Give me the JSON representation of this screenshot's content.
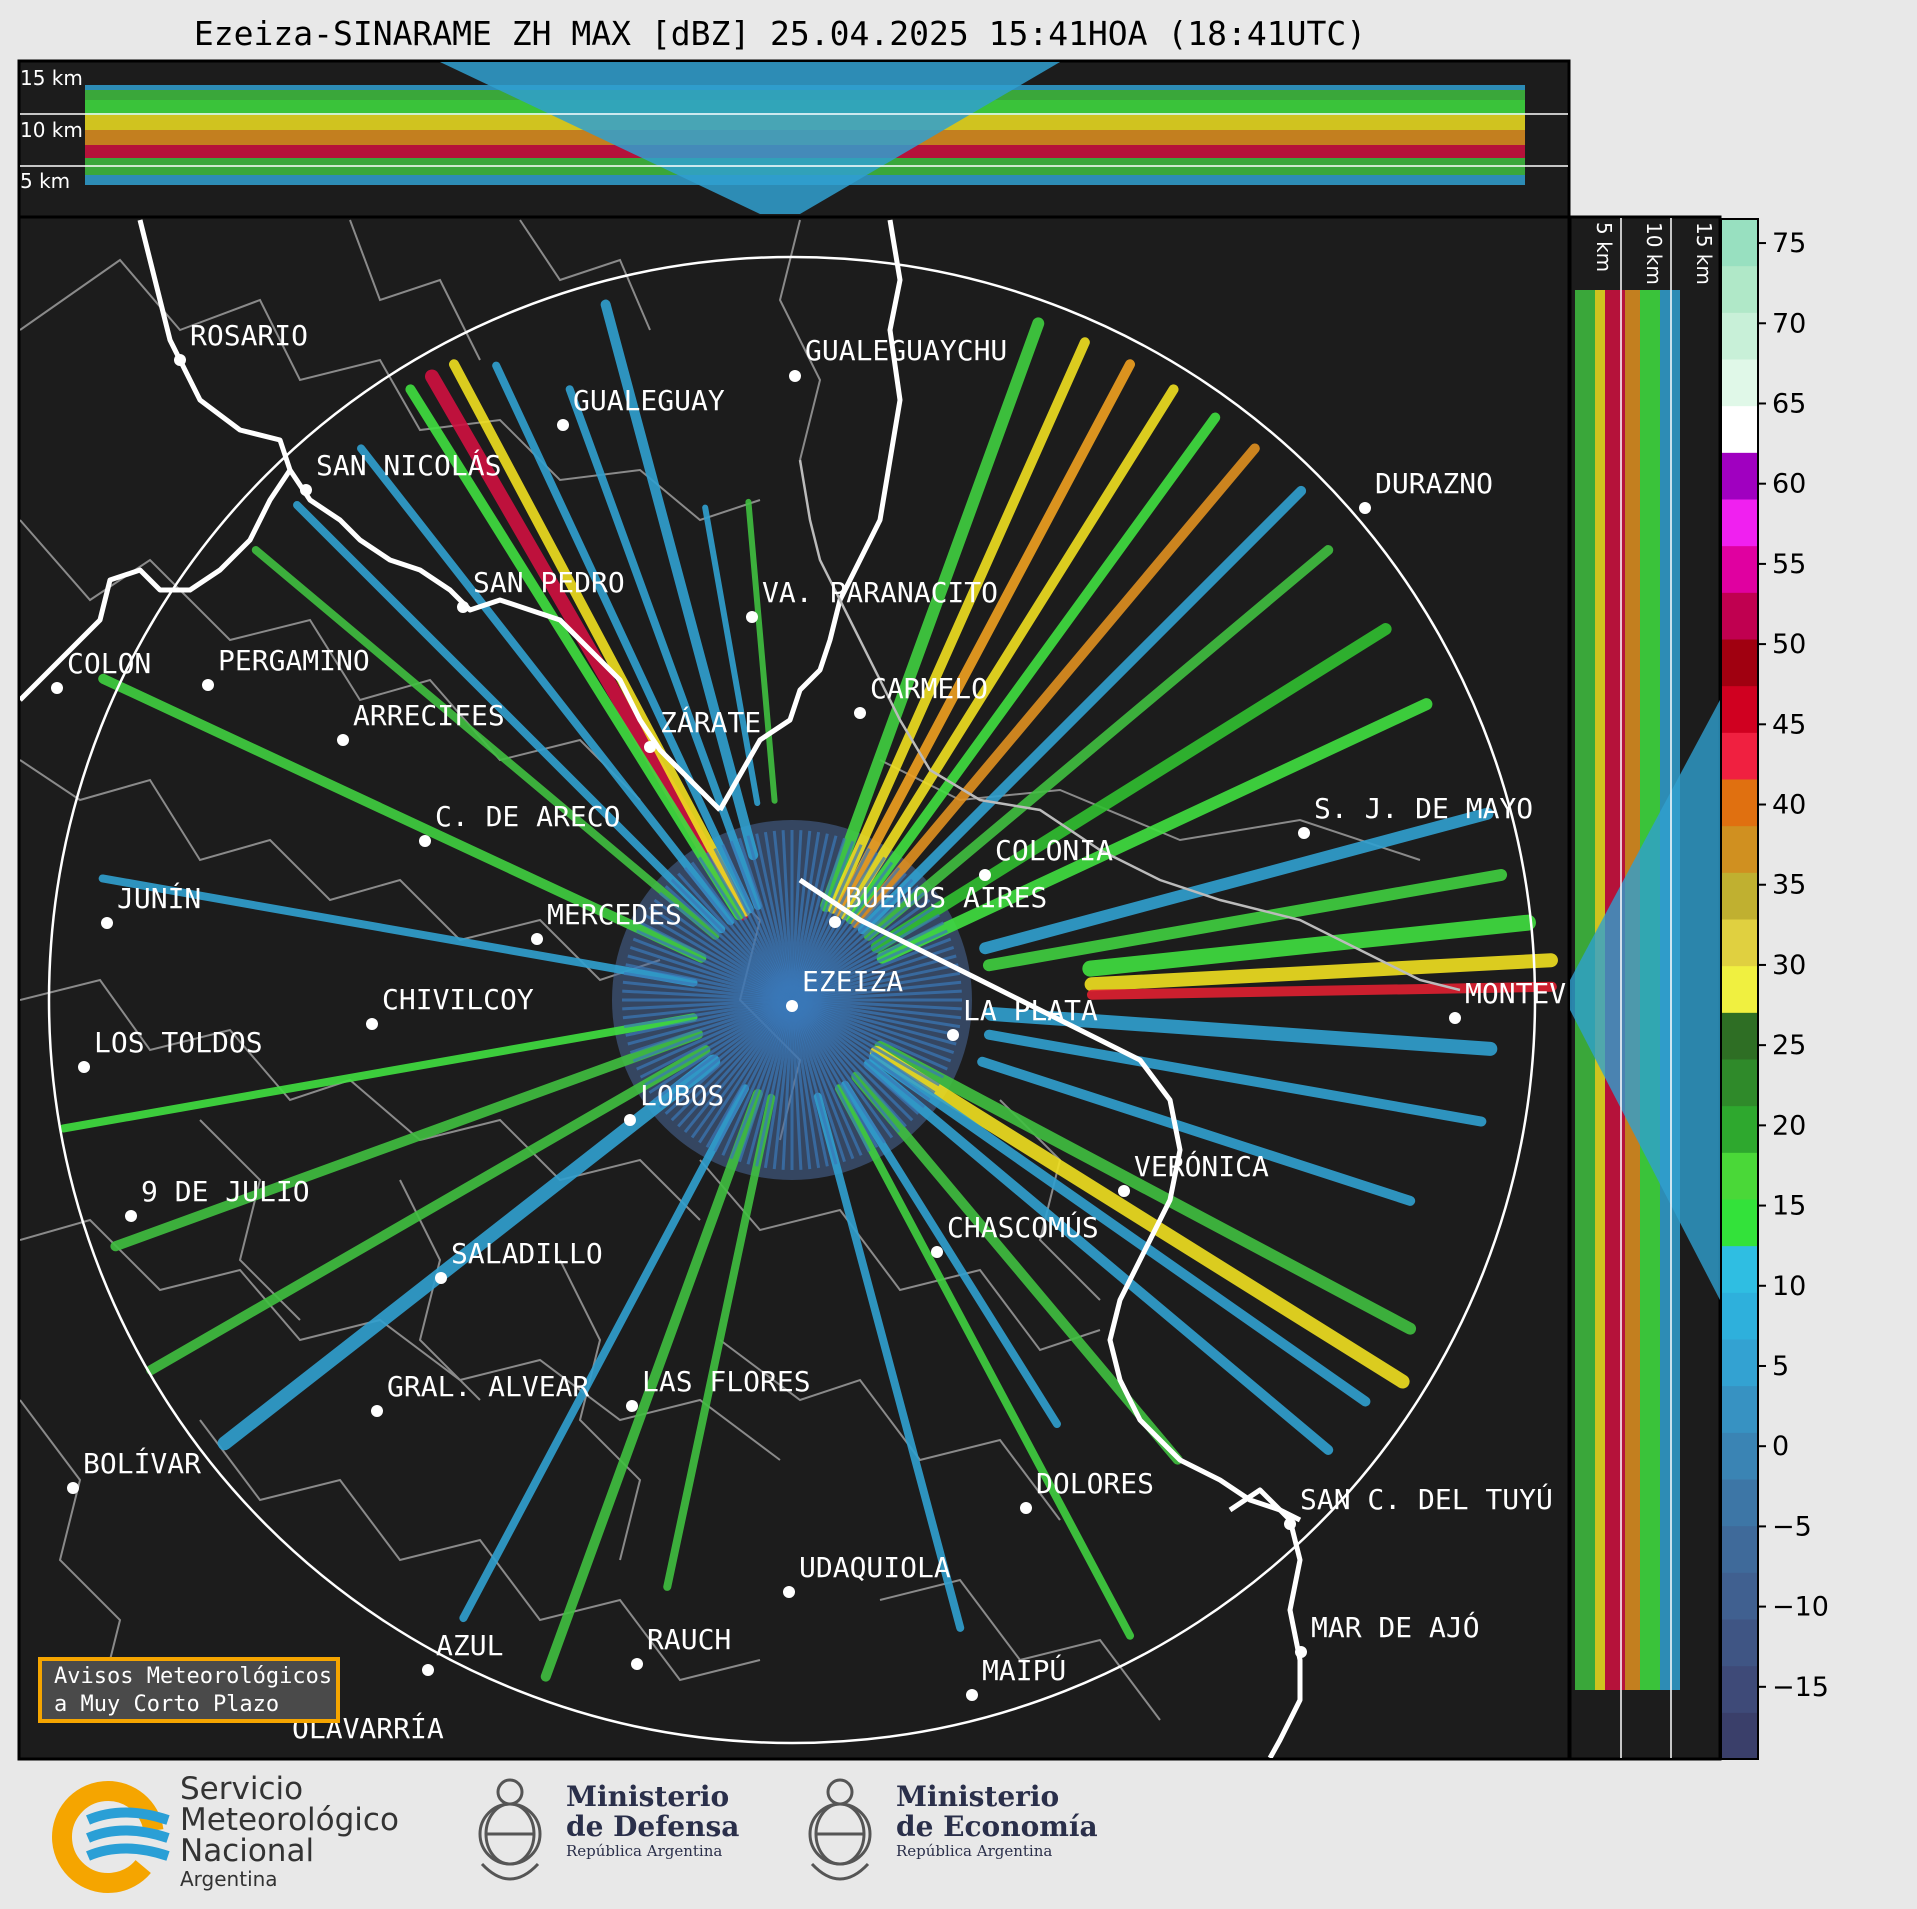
{
  "title": "Ezeiza-SINARAME ZH MAX [dBZ] 25.04.2025 15:41HOA (18:41UTC)",
  "top_panel": {
    "km_labels": [
      "15 km",
      "10 km",
      "5 km"
    ]
  },
  "right_panel": {
    "km_labels": [
      "5 km",
      "10 km",
      "15 km"
    ]
  },
  "cities": [
    {
      "name": "ROSARIO"
    },
    {
      "name": "GUALEGUAYCHU"
    },
    {
      "name": "GUALEGUAY"
    },
    {
      "name": "SAN NICOLÁS"
    },
    {
      "name": "DURAZNO"
    },
    {
      "name": "SAN PEDRO"
    },
    {
      "name": "VA. PARANACITO"
    },
    {
      "name": "COLON"
    },
    {
      "name": "PERGAMINO"
    },
    {
      "name": "CARMELO"
    },
    {
      "name": "ARRECIFES"
    },
    {
      "name": "ZÁRATE"
    },
    {
      "name": "S. J. DE MAYO"
    },
    {
      "name": "C. DE ARECO"
    },
    {
      "name": "COLONIA"
    },
    {
      "name": "JUNÍN"
    },
    {
      "name": "BUENOS AIRES"
    },
    {
      "name": "MERCEDES"
    },
    {
      "name": "EZEIZA"
    },
    {
      "name": "MONTEVIDEO"
    },
    {
      "name": "CHIVILCOY"
    },
    {
      "name": "LA PLATA"
    },
    {
      "name": "LOS TOLDOS"
    },
    {
      "name": "LOBOS"
    },
    {
      "name": "VERÓNICA"
    },
    {
      "name": "9 DE JULIO"
    },
    {
      "name": "CHASCOMÚS"
    },
    {
      "name": "SALADILLO"
    },
    {
      "name": "GRAL. ALVEAR"
    },
    {
      "name": "LAS FLORES"
    },
    {
      "name": "BOLÍVAR"
    },
    {
      "name": "DOLORES"
    },
    {
      "name": "SAN C. DEL TUYÚ"
    },
    {
      "name": "UDAQUIOLA"
    },
    {
      "name": "MAR DE AJÓ"
    },
    {
      "name": "RAUCH"
    },
    {
      "name": "AZUL"
    },
    {
      "name": "MAIPÚ"
    },
    {
      "name": "OLAVARRÍA"
    }
  ],
  "colorbar": {
    "ticks": [
      "75",
      "70",
      "65",
      "60",
      "55",
      "50",
      "45",
      "40",
      "35",
      "30",
      "25",
      "20",
      "15",
      "10",
      "5",
      "0",
      "−5",
      "−10",
      "−15"
    ],
    "min": -19.5,
    "max": 76.5
  },
  "avisos": {
    "line1": "Avisos Meteorológicos",
    "line2": "a Muy Corto Plazo"
  },
  "logos": {
    "smn": [
      "Servicio",
      "Meteorológico",
      "Nacional",
      "Argentina"
    ],
    "defensa": {
      "line1": "Ministerio",
      "line2": "de Defensa",
      "sub": "República Argentina"
    },
    "economia": {
      "line1": "Ministerio",
      "line2": "de Economía",
      "sub": "República Argentina"
    }
  },
  "colors": {
    "background": "#1c1c1c",
    "range_ring": "#ffffff",
    "coast": "#ffffff",
    "borders": "#8a8a8a",
    "avisos_border": "#f5a500"
  }
}
